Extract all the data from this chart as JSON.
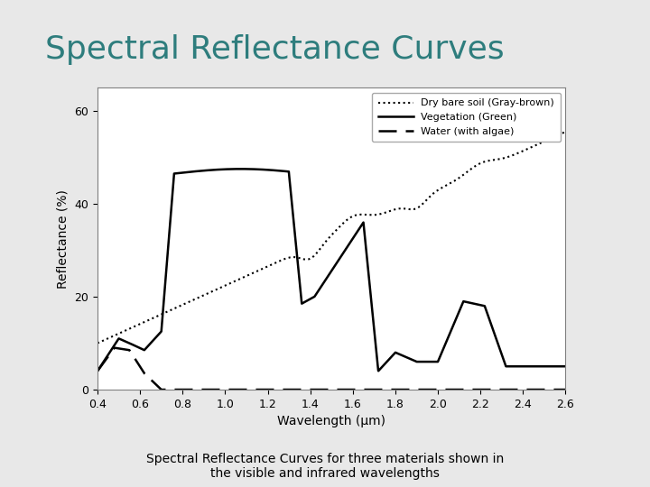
{
  "title": "Spectral Reflectance Curves",
  "caption": "Spectral Reflectance Curves for three materials shown in\nthe visible and infrared wavelengths",
  "xlabel": "Wavelength (μm)",
  "ylabel": "Reflectance (%)",
  "xlim": [
    0.4,
    2.6
  ],
  "ylim": [
    0,
    65
  ],
  "yticks": [
    0,
    20,
    40,
    60
  ],
  "xticks": [
    0.4,
    0.6,
    0.8,
    1.0,
    1.2,
    1.4,
    1.6,
    1.8,
    2.0,
    2.2,
    2.4,
    2.6
  ],
  "background_color": "#e8e8e8",
  "plot_bg": "#ffffff",
  "title_color": "#2e7d7d",
  "title_fontsize": 26,
  "legend_labels": [
    "Dry bare soil (Gray-brown)",
    "Vegetation (Green)",
    "Water (with algae)"
  ],
  "line_color": "#000000"
}
